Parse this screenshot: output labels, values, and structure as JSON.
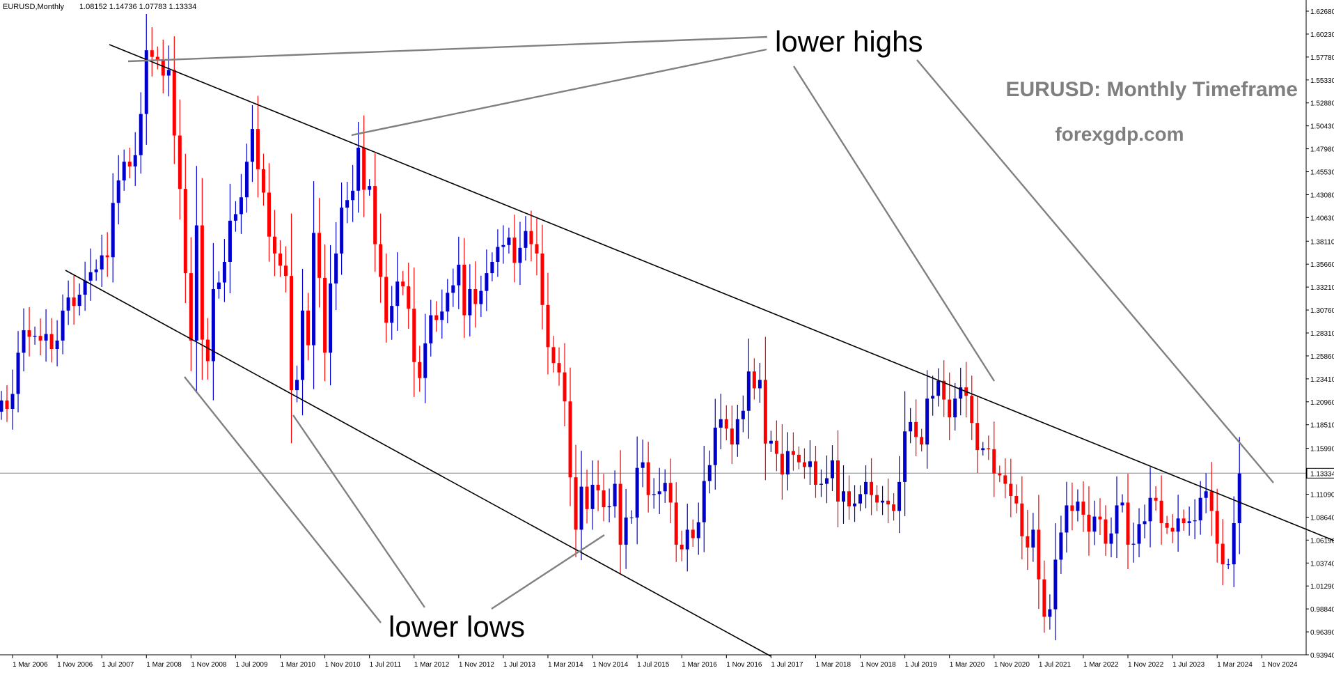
{
  "header": {
    "symbol_info": "EURUSD,Monthly",
    "ohlc": "1.08152 1.14736 1.07783 1.13334"
  },
  "overlay": {
    "title": "EURUSD: Monthly Timeframe",
    "website": "forexgdp.com",
    "lower_highs_label": "lower highs",
    "lower_lows_label": "lower lows"
  },
  "colors": {
    "bull": "#0000cc",
    "bear": "#ff0000",
    "channel": "#000000",
    "pointer": "#808080",
    "overlay_text": "#7f7f7f",
    "price_line": "#7a8a9e"
  },
  "chart_data": {
    "type": "candlestick",
    "symbol": "EURUSD",
    "timeframe": "Monthly",
    "current_price": 1.13334,
    "ylim": [
      0.9394,
      1.6268
    ],
    "price_ticks": [
      "1.62680",
      "1.60230",
      "1.57780",
      "1.55330",
      "1.52880",
      "1.50430",
      "1.47980",
      "1.45530",
      "1.43080",
      "1.40630",
      "1.38110",
      "1.35660",
      "1.33210",
      "1.30760",
      "1.28310",
      "1.25860",
      "1.23410",
      "1.20960",
      "1.18510",
      "1.15990",
      "1.13334",
      "1.11090",
      "1.08640",
      "1.06190",
      "1.03740",
      "1.01290",
      "0.98840",
      "0.96390",
      "0.93940"
    ],
    "date_ticks": [
      "1 Mar 2006",
      "1 Nov 2006",
      "1 Jul 2007",
      "1 Mar 2008",
      "1 Nov 2008",
      "1 Jul 2009",
      "1 Mar 2010",
      "1 Nov 2010",
      "1 Jul 2011",
      "1 Mar 2012",
      "1 Nov 2012",
      "1 Jul 2013",
      "1 Mar 2014",
      "1 Nov 2014",
      "1 Jul 2015",
      "1 Mar 2016",
      "1 Nov 2016",
      "1 Jul 2017",
      "1 Mar 2018",
      "1 Nov 2018",
      "1 Jul 2019",
      "1 Mar 2020",
      "1 Nov 2020",
      "1 Jul 2021",
      "1 Mar 2022",
      "1 Nov 2022",
      "1 Jul 2023",
      "1 Mar 2024",
      "1 Nov 2024"
    ],
    "date_tick_start_index": 2,
    "date_tick_step": 8,
    "first_candle": "1 Jan 2006",
    "closes": [
      1.211,
      1.202,
      1.218,
      1.262,
      1.286,
      1.279,
      1.28,
      1.275,
      1.282,
      1.266,
      1.275,
      1.307,
      1.321,
      1.312,
      1.324,
      1.339,
      1.348,
      1.351,
      1.366,
      1.364,
      1.422,
      1.446,
      1.466,
      1.461,
      1.473,
      1.517,
      1.585,
      1.578,
      1.574,
      1.558,
      1.564,
      1.494,
      1.437,
      1.347,
      1.275,
      1.398,
      1.276,
      1.253,
      1.33,
      1.337,
      1.359,
      1.403,
      1.41,
      1.428,
      1.466,
      1.501,
      1.458,
      1.433,
      1.386,
      1.368,
      1.355,
      1.344,
      1.222,
      1.233,
      1.307,
      1.27,
      1.39,
      1.342,
      1.262,
      1.336,
      1.368,
      1.417,
      1.425,
      1.435,
      1.481,
      1.436,
      1.44,
      1.378,
      1.343,
      1.294,
      1.312,
      1.338,
      1.333,
      1.309,
      1.252,
      1.235,
      1.272,
      1.302,
      1.297,
      1.306,
      1.326,
      1.334,
      1.356,
      1.302,
      1.33,
      1.314,
      1.328,
      1.347,
      1.359,
      1.375,
      1.377,
      1.385,
      1.358,
      1.374,
      1.392,
      1.378,
      1.368,
      1.313,
      1.268,
      1.251,
      1.241,
      1.21,
      1.129,
      1.073,
      1.119,
      1.095,
      1.121,
      1.115,
      1.097,
      1.098,
      1.122,
      1.057,
      1.086,
      1.086,
      1.139,
      1.145,
      1.11,
      1.111,
      1.114,
      1.123,
      1.102,
      1.057,
      1.052,
      1.073,
      1.064,
      1.081,
      1.125,
      1.142,
      1.182,
      1.191,
      1.181,
      1.164,
      1.191,
      1.2,
      1.242,
      1.224,
      1.233,
      1.165,
      1.168,
      1.154,
      1.132,
      1.157,
      1.153,
      1.145,
      1.14,
      1.146,
      1.121,
      1.122,
      1.128,
      1.147,
      1.103,
      1.114,
      1.098,
      1.101,
      1.111,
      1.124,
      1.11,
      1.102,
      1.104,
      1.1,
      1.093,
      1.124,
      1.178,
      1.188,
      1.172,
      1.164,
      1.213,
      1.216,
      1.232,
      1.212,
      1.193,
      1.213,
      1.225,
      1.216,
      1.187,
      1.158,
      1.16,
      1.159,
      1.133,
      1.131,
      1.122,
      1.109,
      1.101,
      1.066,
      1.054,
      1.073,
      1.02,
      0.98,
      0.988,
      1.041,
      1.07,
      1.099,
      1.093,
      1.103,
      1.089,
      1.071,
      1.087,
      1.084,
      1.058,
      1.069,
      1.099,
      1.102,
      1.057,
      1.058,
      1.079,
      1.082,
      1.107,
      1.104,
      1.08,
      1.075,
      1.071,
      1.085,
      1.08,
      1.082,
      1.083,
      1.107,
      1.114,
      1.093,
      1.058,
      1.036,
      1.036,
      1.08,
      1.133
    ]
  }
}
